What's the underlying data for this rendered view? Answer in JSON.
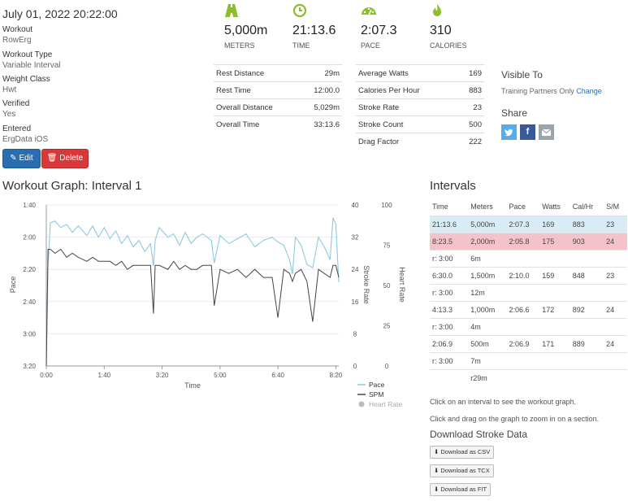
{
  "workout": {
    "date": "July 01, 2022 20:22:00",
    "fields": [
      {
        "label": "Workout",
        "value": "RowErg"
      },
      {
        "label": "Workout Type",
        "value": "Variable Interval"
      },
      {
        "label": "Weight Class",
        "value": "Hwt"
      },
      {
        "label": "Verified",
        "value": "Yes"
      },
      {
        "label": "Entered",
        "value": "ErgData iOS"
      }
    ],
    "edit_label": "Edit",
    "delete_label": "Delete"
  },
  "summary": [
    {
      "icon": "road-icon",
      "value": "5,000m",
      "label": "METERS"
    },
    {
      "icon": "clock-icon",
      "value": "21:13.6",
      "label": "TIME"
    },
    {
      "icon": "speedometer-icon",
      "value": "2:07.3",
      "label": "PACE"
    },
    {
      "icon": "flame-icon",
      "value": "310",
      "label": "CALORIES"
    }
  ],
  "details_left": [
    {
      "label": "Rest Distance",
      "value": "29m"
    },
    {
      "label": "Rest Time",
      "value": "12:00.0"
    },
    {
      "label": "Overall Distance",
      "value": "5,029m"
    },
    {
      "label": "Overall Time",
      "value": "33:13.6"
    }
  ],
  "details_right": [
    {
      "label": "Average Watts",
      "value": "169"
    },
    {
      "label": "Calories Per Hour",
      "value": "883"
    },
    {
      "label": "Stroke Rate",
      "value": "23"
    },
    {
      "label": "Stroke Count",
      "value": "500"
    },
    {
      "label": "Drag Factor",
      "value": "222"
    }
  ],
  "visibility": {
    "title": "Visible To",
    "value": "Training Partners Only",
    "change_label": "Change"
  },
  "share": {
    "title": "Share",
    "colors": {
      "twitter": "#55acee",
      "facebook": "#3b5998",
      "email": "#9aa5ad"
    }
  },
  "graph": {
    "title": "Workout Graph: Interval 1",
    "xlabel": "Time",
    "y_left_label": "Pace",
    "y_right1_label": "Stroke Rate",
    "y_right2_label": "Heart Rate",
    "legend": [
      {
        "name": "Pace",
        "color": "#8ec9e0"
      },
      {
        "name": "SPM",
        "color": "#444444"
      },
      {
        "name": "Heart Rate",
        "color": "#bbbbbb"
      }
    ]
  },
  "chart_data": {
    "type": "line",
    "xlabel": "Time",
    "x_ticks": [
      "0:00",
      "1:40",
      "3:20",
      "5:00",
      "6:40",
      "8:20"
    ],
    "x_tick_values": [
      0,
      100,
      200,
      300,
      400,
      500
    ],
    "xlim": [
      0,
      505
    ],
    "pace_axis": {
      "ticks": [
        "1:40",
        "2:00",
        "2:20",
        "2:40",
        "3:00",
        "3:20"
      ],
      "tick_values": [
        100,
        120,
        140,
        160,
        180,
        200
      ],
      "ylim": [
        100,
        200
      ],
      "reversed": true,
      "label": "Pace"
    },
    "spm_axis": {
      "ticks": [
        "40",
        "32",
        "24",
        "16",
        "8",
        "0"
      ],
      "tick_values": [
        40,
        32,
        24,
        16,
        8,
        0
      ],
      "ylim": [
        0,
        40
      ],
      "label": "Stroke Rate"
    },
    "hr_axis": {
      "ticks": [
        "100",
        "75",
        "50",
        "25",
        "0"
      ],
      "tick_values": [
        100,
        75,
        50,
        25,
        0
      ],
      "ylim": [
        0,
        100
      ],
      "label": "Heart Rate"
    },
    "series": [
      {
        "name": "Pace",
        "color": "#8ec9e0",
        "x": [
          0,
          3,
          7,
          15,
          25,
          35,
          45,
          55,
          70,
          80,
          90,
          100,
          110,
          120,
          130,
          140,
          150,
          160,
          170,
          180,
          185,
          188,
          195,
          210,
          220,
          230,
          240,
          250,
          260,
          270,
          285,
          290,
          300,
          315,
          330,
          345,
          360,
          375,
          390,
          400,
          410,
          420,
          425,
          430,
          440,
          450,
          460,
          470,
          480,
          490,
          495,
          500,
          505
        ],
        "y": [
          200,
          138,
          111,
          110,
          114,
          112,
          117,
          113,
          119,
          113,
          120,
          114,
          121,
          116,
          124,
          119,
          126,
          122,
          129,
          124,
          138,
          122,
          114,
          120,
          118,
          125,
          117,
          124,
          120,
          118,
          122,
          136,
          119,
          124,
          121,
          118,
          126,
          122,
          120,
          123,
          125,
          134,
          143,
          120,
          125,
          137,
          139,
          120,
          126,
          134,
          108,
          112,
          148
        ]
      },
      {
        "name": "SPM",
        "color": "#444444",
        "x": [
          0,
          3,
          7,
          15,
          25,
          35,
          45,
          55,
          70,
          80,
          90,
          100,
          110,
          120,
          130,
          140,
          150,
          160,
          170,
          180,
          185,
          188,
          195,
          210,
          220,
          230,
          240,
          250,
          260,
          270,
          285,
          290,
          300,
          315,
          330,
          345,
          360,
          375,
          390,
          400,
          410,
          420,
          425,
          430,
          440,
          450,
          460,
          470,
          480,
          490,
          495,
          500,
          505
        ],
        "y": [
          0,
          29,
          29,
          28,
          29,
          27,
          28,
          27,
          26,
          27,
          26,
          26,
          26,
          25,
          26,
          24,
          25,
          25,
          25,
          25,
          13,
          25,
          25,
          24,
          26,
          24,
          25,
          24,
          24,
          25,
          25,
          15,
          24,
          23,
          24,
          22,
          24,
          22,
          22,
          12,
          24,
          23,
          21,
          23,
          24,
          21,
          11,
          24,
          23,
          22,
          25,
          25,
          22
        ]
      }
    ]
  },
  "intervals": {
    "title": "Intervals",
    "headers": [
      "Time",
      "Meters",
      "Pace",
      "Watts",
      "Cal/Hr",
      "S/M"
    ],
    "rows": [
      [
        "21:13.6",
        "5,000m",
        "2:07.3",
        "169",
        "883",
        "23"
      ],
      [
        "8:23.5",
        "2,000m",
        "2:05.8",
        "175",
        "903",
        "24"
      ],
      [
        "r: 3:00",
        "6m",
        "",
        "",
        "",
        ""
      ],
      [
        "6:30.0",
        "1,500m",
        "2:10.0",
        "159",
        "848",
        "23"
      ],
      [
        "r: 3:00",
        "12m",
        "",
        "",
        "",
        ""
      ],
      [
        "4:13.3",
        "1,000m",
        "2:06.6",
        "172",
        "892",
        "24"
      ],
      [
        "r: 3:00",
        "4m",
        "",
        "",
        "",
        ""
      ],
      [
        "2:06.9",
        "500m",
        "2:06.9",
        "171",
        "889",
        "24"
      ],
      [
        "r: 3:00",
        "7m",
        "",
        "",
        "",
        ""
      ],
      [
        "",
        "r29m",
        "",
        "",
        "",
        ""
      ]
    ],
    "help1": "Click on an interval to see the workout graph.",
    "help2": "Click and drag on the graph to zoom in on a section."
  },
  "download": {
    "title": "Download Stroke Data",
    "buttons": [
      "Download as CSV",
      "Download as TCX",
      "Download as FIT"
    ]
  }
}
